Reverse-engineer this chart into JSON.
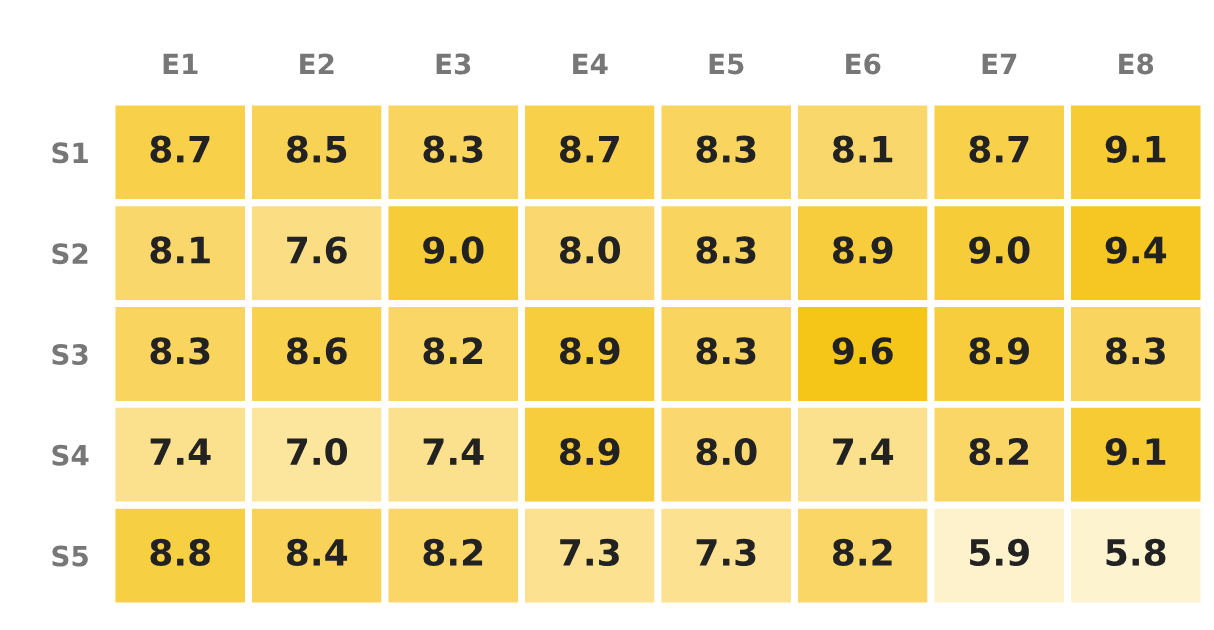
{
  "chart_data": {
    "type": "heatmap",
    "categories": [
      "E1",
      "E2",
      "E3",
      "E4",
      "E5",
      "E6",
      "E7",
      "E8"
    ],
    "y_categories": [
      "S1",
      "S2",
      "S3",
      "S4",
      "S5"
    ],
    "cells": [
      [
        8.7,
        8.5,
        8.3,
        8.7,
        8.3,
        8.1,
        8.7,
        9.1
      ],
      [
        8.1,
        7.6,
        9.0,
        8.0,
        8.3,
        8.9,
        9.0,
        9.4
      ],
      [
        8.3,
        8.6,
        8.2,
        8.9,
        8.3,
        9.6,
        8.9,
        8.3
      ],
      [
        7.4,
        7.0,
        7.4,
        8.9,
        8.0,
        7.4,
        8.2,
        9.1
      ],
      [
        8.8,
        8.4,
        8.2,
        7.3,
        7.3,
        8.2,
        5.9,
        5.8
      ]
    ],
    "cell_labels": [
      [
        "8.7",
        "8.5",
        "8.3",
        "8.7",
        "8.3",
        "8.1",
        "8.7",
        "9.1"
      ],
      [
        "8.1",
        "7.6",
        "9.0",
        "8.0",
        "8.3",
        "8.9",
        "9.0",
        "9.4"
      ],
      [
        "8.3",
        "8.6",
        "8.2",
        "8.9",
        "8.3",
        "9.6",
        "8.9",
        "8.3"
      ],
      [
        "7.4",
        "7.0",
        "7.4",
        "8.9",
        "8.0",
        "7.4",
        "8.2",
        "9.1"
      ],
      [
        "8.8",
        "8.4",
        "8.2",
        "7.3",
        "7.3",
        "8.2",
        "5.9",
        "5.8"
      ]
    ],
    "data_labels": true
  }
}
